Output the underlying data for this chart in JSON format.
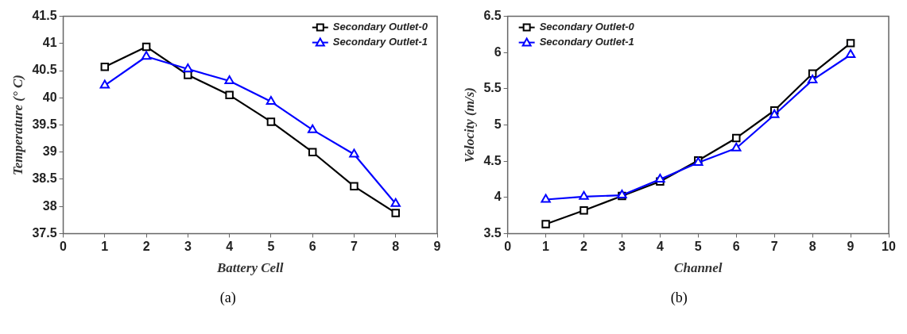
{
  "chart_data": [
    {
      "type": "line",
      "x": [
        1,
        2,
        3,
        4,
        5,
        6,
        7,
        8
      ],
      "xlabel": "Battery Cell",
      "ylabel": "Temperature (° C)",
      "xlim": [
        0,
        9
      ],
      "xticks": [
        0,
        1,
        2,
        3,
        4,
        5,
        6,
        7,
        8,
        9
      ],
      "ylim": [
        37.5,
        41.5
      ],
      "yticks": [
        37.5,
        38,
        38.5,
        39,
        39.5,
        40,
        40.5,
        41,
        41.5
      ],
      "grid": false,
      "legend": "top right",
      "line_style": "solid",
      "annotations": [
        "(a)"
      ],
      "series": [
        {
          "name": "Secondary Outlet-0",
          "color": "#000000",
          "marker": "square",
          "values": [
            40.57,
            40.94,
            40.42,
            40.05,
            39.56,
            39.0,
            38.37,
            37.88
          ]
        },
        {
          "name": "Secondary Outlet-1",
          "color": "#0000ff",
          "marker": "triangle",
          "values": [
            40.23,
            40.76,
            40.53,
            40.31,
            39.93,
            39.41,
            38.96,
            38.05
          ]
        }
      ]
    },
    {
      "type": "line",
      "x": [
        1,
        2,
        3,
        4,
        5,
        6,
        7,
        8,
        9
      ],
      "xlabel": "Channel",
      "ylabel": "Velocity (m/s)",
      "xlim": [
        0,
        10
      ],
      "xticks": [
        0,
        1,
        2,
        3,
        4,
        5,
        6,
        7,
        8,
        9,
        10
      ],
      "ylim": [
        3.5,
        6.5
      ],
      "yticks": [
        3.5,
        4,
        4.5,
        5,
        5.5,
        6,
        6.5
      ],
      "grid": false,
      "legend": "top left",
      "line_style": "solid",
      "annotations": [
        "(b)"
      ],
      "series": [
        {
          "name": "Secondary Outlet-0",
          "color": "#000000",
          "marker": "square",
          "values": [
            3.63,
            3.82,
            4.02,
            4.22,
            4.51,
            4.82,
            5.2,
            5.71,
            6.13
          ]
        },
        {
          "name": "Secondary Outlet-1",
          "color": "#0000ff",
          "marker": "triangle",
          "values": [
            3.97,
            4.01,
            4.03,
            4.25,
            4.48,
            4.68,
            5.14,
            5.62,
            5.97
          ]
        }
      ]
    }
  ]
}
